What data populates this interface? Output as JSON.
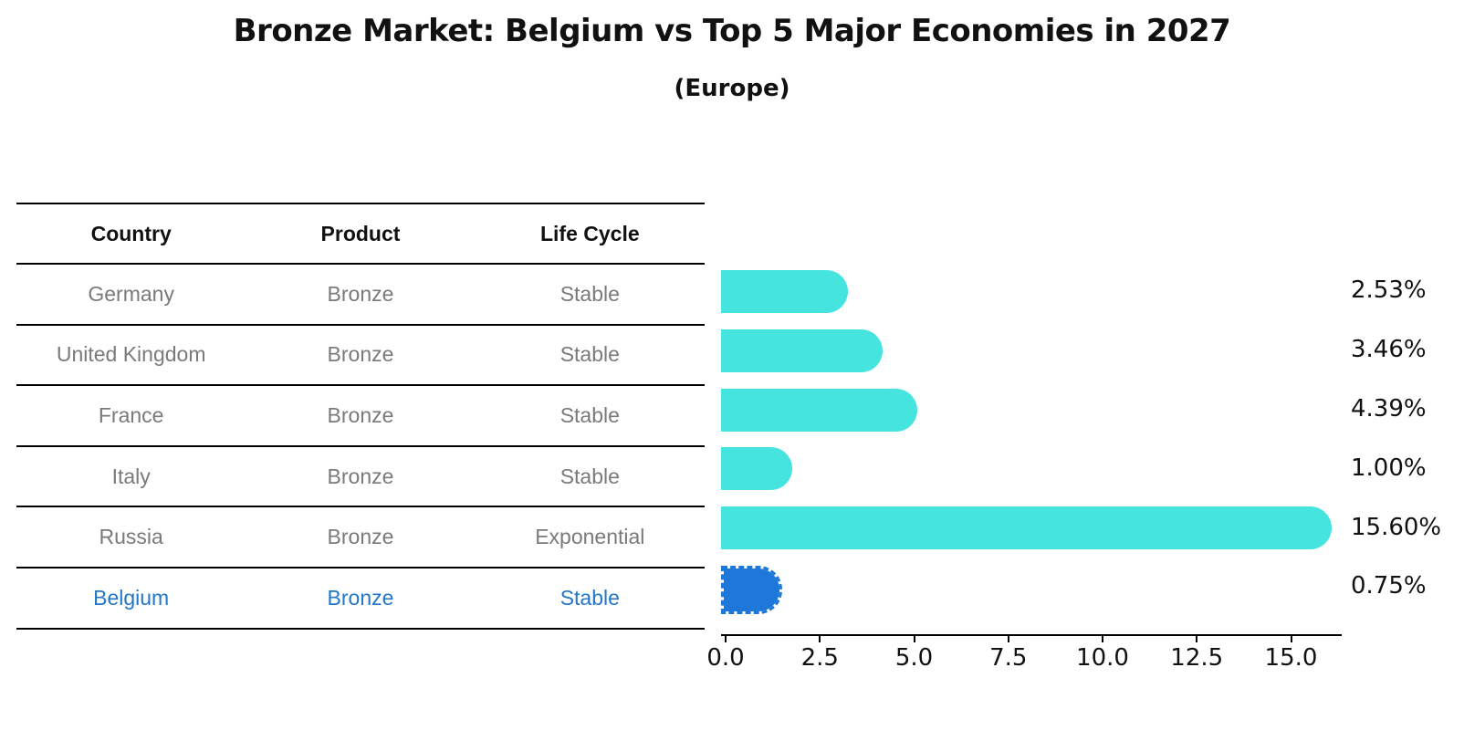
{
  "title": "Bronze Market: Belgium vs Top 5 Major Economies in 2027",
  "subtitle": "(Europe)",
  "table": {
    "headers": [
      "Country",
      "Product",
      "Life Cycle"
    ],
    "rows": [
      {
        "country": "Germany",
        "product": "Bronze",
        "life_cycle": "Stable",
        "highlight": false
      },
      {
        "country": "United Kingdom",
        "product": "Bronze",
        "life_cycle": "Stable",
        "highlight": false
      },
      {
        "country": "France",
        "product": "Bronze",
        "life_cycle": "Stable",
        "highlight": false
      },
      {
        "country": "Italy",
        "product": "Bronze",
        "life_cycle": "Stable",
        "highlight": false
      },
      {
        "country": "Russia",
        "product": "Bronze",
        "life_cycle": "Exponential",
        "highlight": false
      },
      {
        "country": "Belgium",
        "product": "Bronze",
        "life_cycle": "Stable",
        "highlight": true
      }
    ]
  },
  "chart_data": {
    "type": "bar",
    "orientation": "horizontal",
    "title": "Bronze Market: Belgium vs Top 5 Major Economies in 2027",
    "subtitle": "(Europe)",
    "categories": [
      "Germany",
      "United Kingdom",
      "France",
      "Italy",
      "Russia",
      "Belgium"
    ],
    "values": [
      2.53,
      3.46,
      4.39,
      1.0,
      15.6,
      0.75
    ],
    "bar_labels": [
      "2.53%",
      "3.46%",
      "4.39%",
      "1.00%",
      "15.60%",
      "0.75%"
    ],
    "xlim": [
      0,
      16.5
    ],
    "xticks": [
      0,
      2.5,
      5,
      7.5,
      10,
      12.5,
      15
    ],
    "xtick_labels": [
      "0.0",
      "2.5",
      "5.0",
      "7.5",
      "10.0",
      "12.5",
      "15.0"
    ],
    "grid": false,
    "legend": false,
    "highlight_index": 5
  },
  "colors": {
    "bar_default": "#45e4df",
    "bar_highlight": "#1e78d9",
    "highlight_text": "#2277c8",
    "row_text": "#7a7a7a",
    "axis_line": "#000000"
  }
}
